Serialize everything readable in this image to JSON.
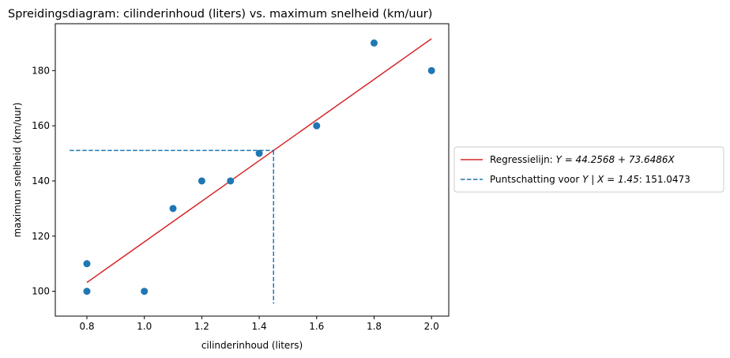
{
  "chart_data": {
    "type": "scatter",
    "title": "Spreidingsdiagram: cilinderinhoud (liters) vs. maximum snelheid (km/uur)",
    "xlabel": "cilinderinhoud (liters)",
    "ylabel": "maximum snelheid (km/uur)",
    "xlim": [
      0.69,
      2.06
    ],
    "ylim": [
      91,
      197
    ],
    "xticks": [
      0.8,
      1.0,
      1.2,
      1.4,
      1.6,
      1.8,
      2.0
    ],
    "xtick_labels": [
      "0.8",
      "1.0",
      "1.2",
      "1.4",
      "1.6",
      "1.8",
      "2.0"
    ],
    "yticks": [
      100,
      120,
      140,
      160,
      180
    ],
    "ytick_labels": [
      "100",
      "120",
      "140",
      "160",
      "180"
    ],
    "grid": false,
    "legend_placement": "center-right-outside",
    "points": [
      {
        "x": 0.8,
        "y": 100
      },
      {
        "x": 0.8,
        "y": 110
      },
      {
        "x": 1.0,
        "y": 100
      },
      {
        "x": 1.1,
        "y": 130
      },
      {
        "x": 1.2,
        "y": 140
      },
      {
        "x": 1.3,
        "y": 140
      },
      {
        "x": 1.4,
        "y": 150
      },
      {
        "x": 1.6,
        "y": 160
      },
      {
        "x": 1.8,
        "y": 190
      },
      {
        "x": 2.0,
        "y": 180
      }
    ],
    "regression": {
      "intercept": 44.2568,
      "slope": 73.6486,
      "x_range": [
        0.8,
        2.0
      ],
      "legend_prefix": "Regressielijn: ",
      "legend_math": "Y = 44.2568 + 73.6486X",
      "color": "#d62728"
    },
    "point_estimate": {
      "x": 1.45,
      "y": 151.0473,
      "h_from_x": 0.74,
      "v_from_y": 95.5,
      "legend_prefix": "Puntschatting voor ",
      "legend_math": "Y | X = 1.45",
      "legend_suffix": ": 151.0473",
      "color": "#1f77b4"
    },
    "point_color": "#1f77b4"
  }
}
